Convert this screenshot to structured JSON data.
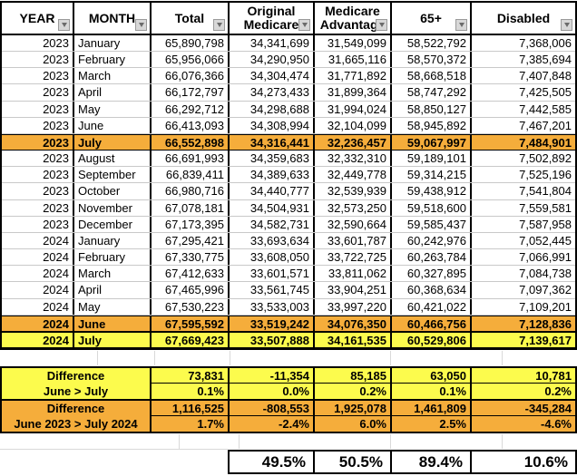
{
  "table": {
    "columns": [
      "YEAR",
      "MONTH",
      "Total",
      "Original\nMedicare",
      "Medicare\nAdvantage",
      "65+",
      "Disabled"
    ],
    "rows": [
      {
        "y": "2023",
        "m": "January",
        "v": [
          "65,890,798",
          "34,341,699",
          "31,549,099",
          "58,522,792",
          "7,368,006"
        ],
        "hl": ""
      },
      {
        "y": "2023",
        "m": "February",
        "v": [
          "65,956,066",
          "34,290,950",
          "31,665,116",
          "58,570,372",
          "7,385,694"
        ],
        "hl": ""
      },
      {
        "y": "2023",
        "m": "March",
        "v": [
          "66,076,366",
          "34,304,474",
          "31,771,892",
          "58,668,518",
          "7,407,848"
        ],
        "hl": ""
      },
      {
        "y": "2023",
        "m": "April",
        "v": [
          "66,172,797",
          "34,273,433",
          "31,899,364",
          "58,747,292",
          "7,425,505"
        ],
        "hl": ""
      },
      {
        "y": "2023",
        "m": "May",
        "v": [
          "66,292,712",
          "34,298,688",
          "31,994,024",
          "58,850,127",
          "7,442,585"
        ],
        "hl": ""
      },
      {
        "y": "2023",
        "m": "June",
        "v": [
          "66,413,093",
          "34,308,994",
          "32,104,099",
          "58,945,892",
          "7,467,201"
        ],
        "hl": ""
      },
      {
        "y": "2023",
        "m": "July",
        "v": [
          "66,552,898",
          "34,316,441",
          "32,236,457",
          "59,067,997",
          "7,484,901"
        ],
        "hl": "orange"
      },
      {
        "y": "2023",
        "m": "August",
        "v": [
          "66,691,993",
          "34,359,683",
          "32,332,310",
          "59,189,101",
          "7,502,892"
        ],
        "hl": ""
      },
      {
        "y": "2023",
        "m": "September",
        "v": [
          "66,839,411",
          "34,389,633",
          "32,449,778",
          "59,314,215",
          "7,525,196"
        ],
        "hl": ""
      },
      {
        "y": "2023",
        "m": "October",
        "v": [
          "66,980,716",
          "34,440,777",
          "32,539,939",
          "59,438,912",
          "7,541,804"
        ],
        "hl": ""
      },
      {
        "y": "2023",
        "m": "November",
        "v": [
          "67,078,181",
          "34,504,931",
          "32,573,250",
          "59,518,600",
          "7,559,581"
        ],
        "hl": ""
      },
      {
        "y": "2023",
        "m": "December",
        "v": [
          "67,173,395",
          "34,582,731",
          "32,590,664",
          "59,585,437",
          "7,587,958"
        ],
        "hl": ""
      },
      {
        "y": "2024",
        "m": "January",
        "v": [
          "67,295,421",
          "33,693,634",
          "33,601,787",
          "60,242,976",
          "7,052,445"
        ],
        "hl": ""
      },
      {
        "y": "2024",
        "m": "February",
        "v": [
          "67,330,775",
          "33,608,050",
          "33,722,725",
          "60,263,784",
          "7,066,991"
        ],
        "hl": ""
      },
      {
        "y": "2024",
        "m": "March",
        "v": [
          "67,412,633",
          "33,601,571",
          "33,811,062",
          "60,327,895",
          "7,084,738"
        ],
        "hl": ""
      },
      {
        "y": "2024",
        "m": "April",
        "v": [
          "67,465,996",
          "33,561,745",
          "33,904,251",
          "60,368,634",
          "7,097,362"
        ],
        "hl": ""
      },
      {
        "y": "2024",
        "m": "May",
        "v": [
          "67,530,223",
          "33,533,003",
          "33,997,220",
          "60,421,022",
          "7,109,201"
        ],
        "hl": ""
      },
      {
        "y": "2024",
        "m": "June",
        "v": [
          "67,595,592",
          "33,519,242",
          "34,076,350",
          "60,466,756",
          "7,128,836"
        ],
        "hl": "orange"
      },
      {
        "y": "2024",
        "m": "July",
        "v": [
          "67,669,423",
          "33,507,888",
          "34,161,535",
          "60,529,806",
          "7,139,617"
        ],
        "hl": "yellow"
      }
    ]
  },
  "diff_blocks": [
    {
      "label_line1": "Difference",
      "label_line2": "June > July",
      "values": [
        "73,831",
        "-11,354",
        "85,185",
        "63,050",
        "10,781"
      ],
      "pcts": [
        "0.1%",
        "0.0%",
        "0.2%",
        "0.1%",
        "0.2%"
      ]
    },
    {
      "label_line1": "Difference",
      "label_line2": "June 2023 > July 2024",
      "values": [
        "1,116,525",
        "-808,553",
        "1,925,078",
        "1,461,809",
        "-345,284"
      ],
      "pcts": [
        "1.7%",
        "-2.4%",
        "6.0%",
        "2.5%",
        "-4.6%"
      ]
    }
  ],
  "summary_pcts": [
    "49.5%",
    "50.5%",
    "89.4%",
    "10.6%"
  ],
  "colors": {
    "highlight_orange": "#F5AD3B",
    "highlight_yellow": "#FCFB4D",
    "grid_hairline": "#c9c9c9"
  },
  "icons": {
    "filter_dropdown": "filter-dropdown-arrow"
  }
}
